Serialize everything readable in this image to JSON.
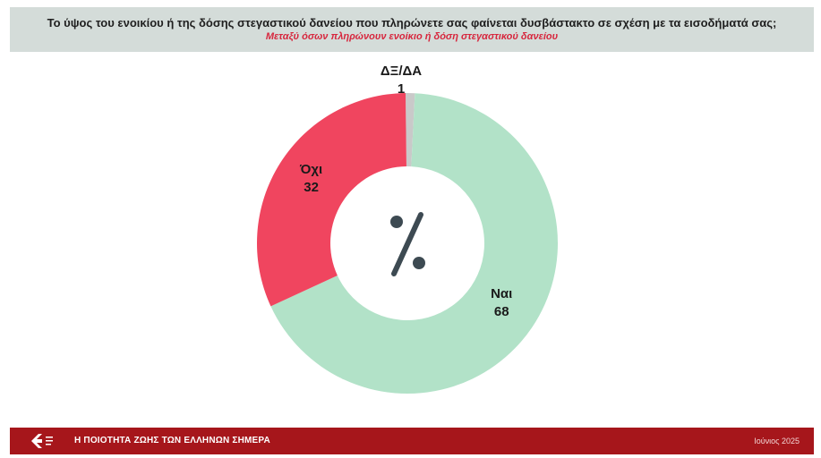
{
  "header": {
    "title": "Το ύψος του ενοικίου ή της δόσης στεγαστικού δανείου που πληρώνετε σας φαίνεται δυσβάστακτο σε σχέση με τα εισοδήματά σας;",
    "subtitle": "Μεταξύ όσων πληρώνουν ενοίκιο ή δόση στεγαστικού δανείου"
  },
  "chart_data": {
    "type": "pie",
    "donut": true,
    "center_label": "%",
    "slices": [
      {
        "label": "ΔΞ/ΔΑ",
        "value": 1,
        "color": "#c9c9c9"
      },
      {
        "label": "Ναι",
        "value": 68,
        "color": "#b2e2c8"
      },
      {
        "label": "Όχι",
        "value": 32,
        "color": "#f0455f"
      }
    ]
  },
  "footer": {
    "title": "Η ΠΟΙΟΤΗΤΑ ΖΩΗΣ ΤΩΝ ΕΛΛΗΝΩΝ ΣΗΜΕΡΑ",
    "date": "Ιούνιος 2025"
  },
  "colors": {
    "footer_bg": "#a6161b",
    "header_bg": "#d4dcd9",
    "accent_red": "#d7263d",
    "center_symbol": "#3d4a52"
  }
}
